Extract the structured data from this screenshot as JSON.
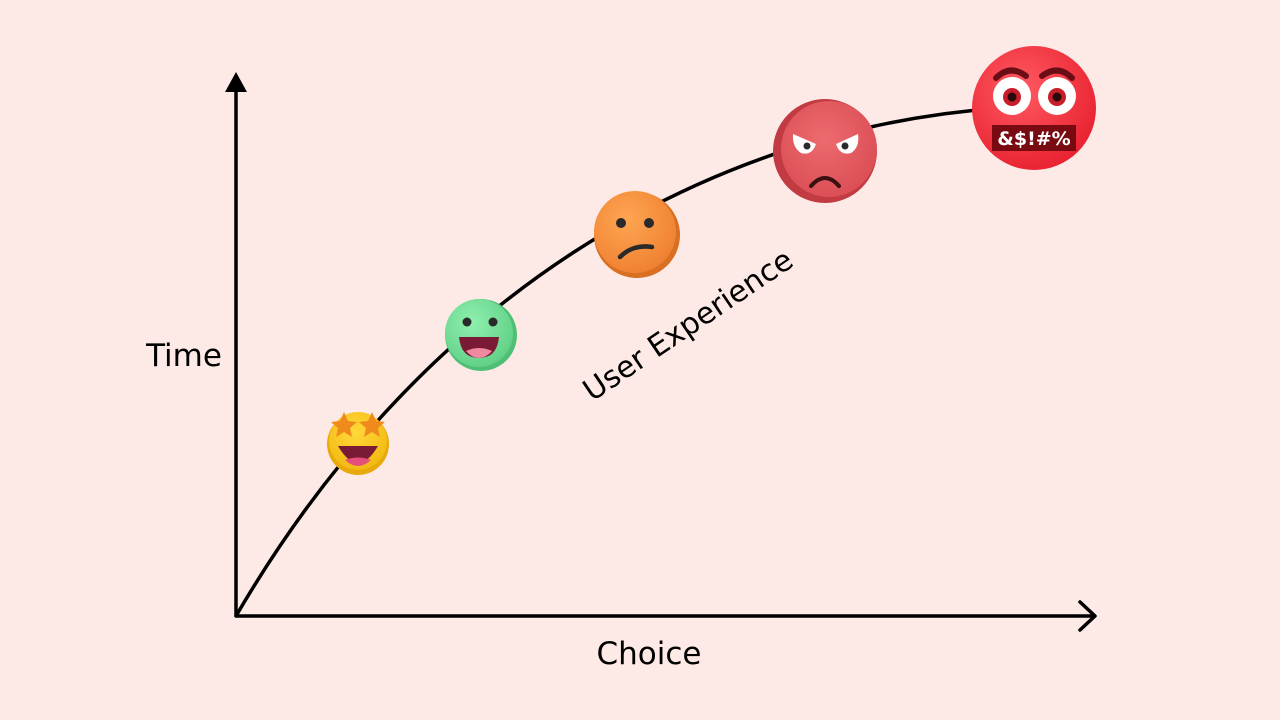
{
  "diagram": {
    "x_axis_label": "Choice",
    "y_axis_label": "Time",
    "curve_label": "User Experience",
    "stages": [
      {
        "emoji": "star-struck-emoji-icon",
        "color": "#f7c21b"
      },
      {
        "emoji": "grinning-emoji-icon",
        "color": "#7fe6a0"
      },
      {
        "emoji": "confused-emoji-icon",
        "color": "#f7923c"
      },
      {
        "emoji": "angry-emoji-icon",
        "color": "#e8565d"
      },
      {
        "emoji": "cursing-emoji-icon",
        "color": "#ef2f40",
        "symbols": "&$!#%"
      }
    ],
    "colors": {
      "background": "#fdeae6",
      "line": "#000000"
    }
  }
}
